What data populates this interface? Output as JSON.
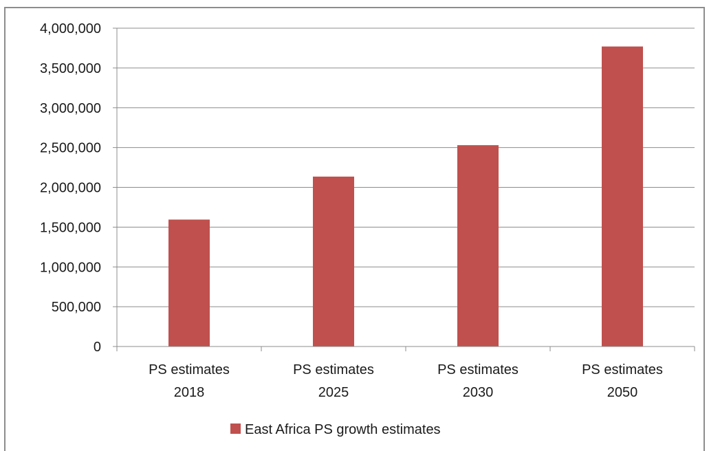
{
  "chart_data": {
    "type": "bar",
    "categories": [
      [
        "PS estimates",
        "2018"
      ],
      [
        "PS estimates",
        "2025"
      ],
      [
        "PS estimates",
        "2030"
      ],
      [
        "PS estimates",
        "2050"
      ]
    ],
    "series": [
      {
        "name": "East Africa PS growth estimates",
        "values": [
          1595000,
          2135000,
          2530000,
          3770000
        ],
        "color": "#c0504d"
      }
    ],
    "y_ticks": [
      "0",
      "500,000",
      "1,000,000",
      "1,500,000",
      "2,000,000",
      "2,500,000",
      "3,000,000",
      "3,500,000",
      "4,000,000"
    ],
    "ylim": [
      0,
      4000000
    ],
    "y_step": 500000,
    "grid": true,
    "legend": "bottom",
    "title": "",
    "xlabel": "",
    "ylabel": ""
  }
}
